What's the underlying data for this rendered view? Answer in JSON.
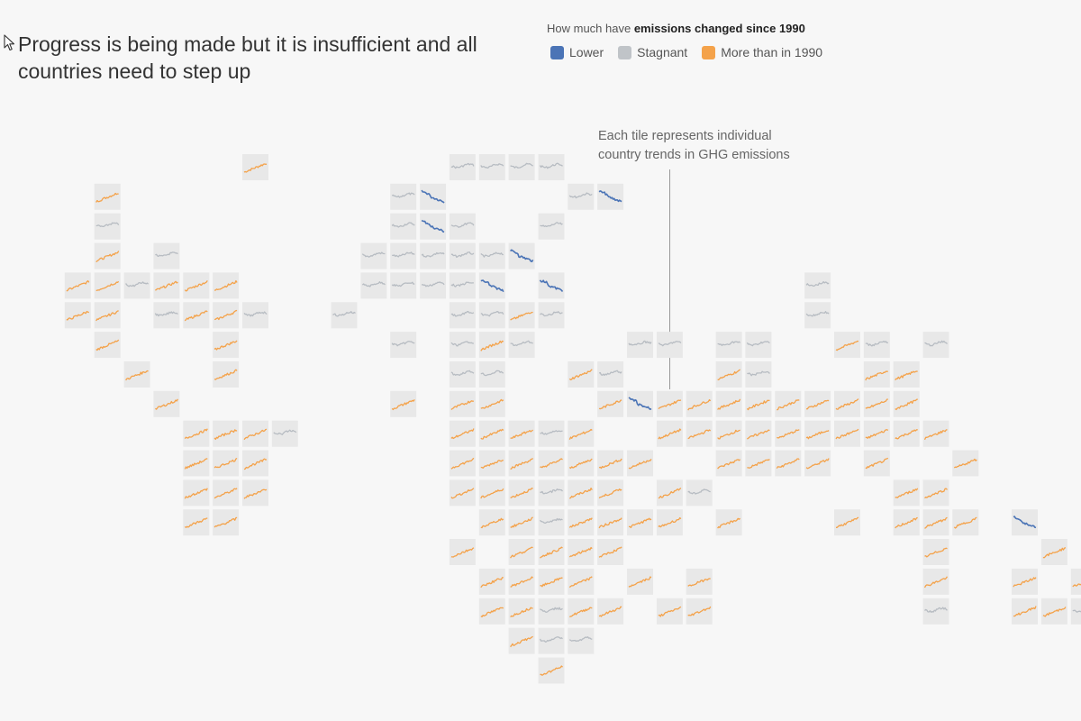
{
  "title": "Progress is being made but it is insufficient and all countries need to step up",
  "legend": {
    "title_prefix": "How much have ",
    "title_bold": "emissions changed since 1990",
    "items": [
      {
        "label": "Lower",
        "color": "#4b74b6"
      },
      {
        "label": "Stagnant",
        "color": "#c0c4c8"
      },
      {
        "label": "More than in 1990",
        "color": "#f4a24a"
      }
    ]
  },
  "annotation": {
    "line1": "Each tile represents individual",
    "line2": "country trends in GHG emissions"
  },
  "colors": {
    "L": "#4b74b6",
    "S": "#b7bcc2",
    "M": "#f4a24a",
    "tile_bg": "#e8e8e8"
  },
  "chart_data": {
    "type": "tile-grid-map",
    "note": "Each row string lists the 36 map columns; L = lower, S = stagnant, M = more than in 1990, . = no tile",
    "rows": [
      ".......M......SSSS..................",
      "..M.........SL....SL................",
      "..S.........SLS..S..................",
      "..M.S......SSSSSL...................",
      ".MMSMMM....SSSSL.L........S.........",
      ".MM.SMMS..S...SSMS........S.........",
      "..M...M.....S.SMS...SS.SS..MS.S.....",
      "...M..M.......SS..MS...MS...MM......",
      "....M.......M.MM...MLMMMMMMMMM......",
      ".....MMMS.....MMMSM..MMMMMMMMMM.....",
      ".....MMM......MMMMMMM..MMMM.M..M....",
      ".....MMM......MMMSMM.MS......MM.....",
      ".....MM........MMSMMMM.M...M.MMM.L..",
      "..............M.MMMM..........M...M.",
      "...............MMMM.M.M.......M..M.M",
      "...............MMSMM.MM.......S..MMS",
      "................MSS.................",
      ".................M.................."
    ]
  }
}
